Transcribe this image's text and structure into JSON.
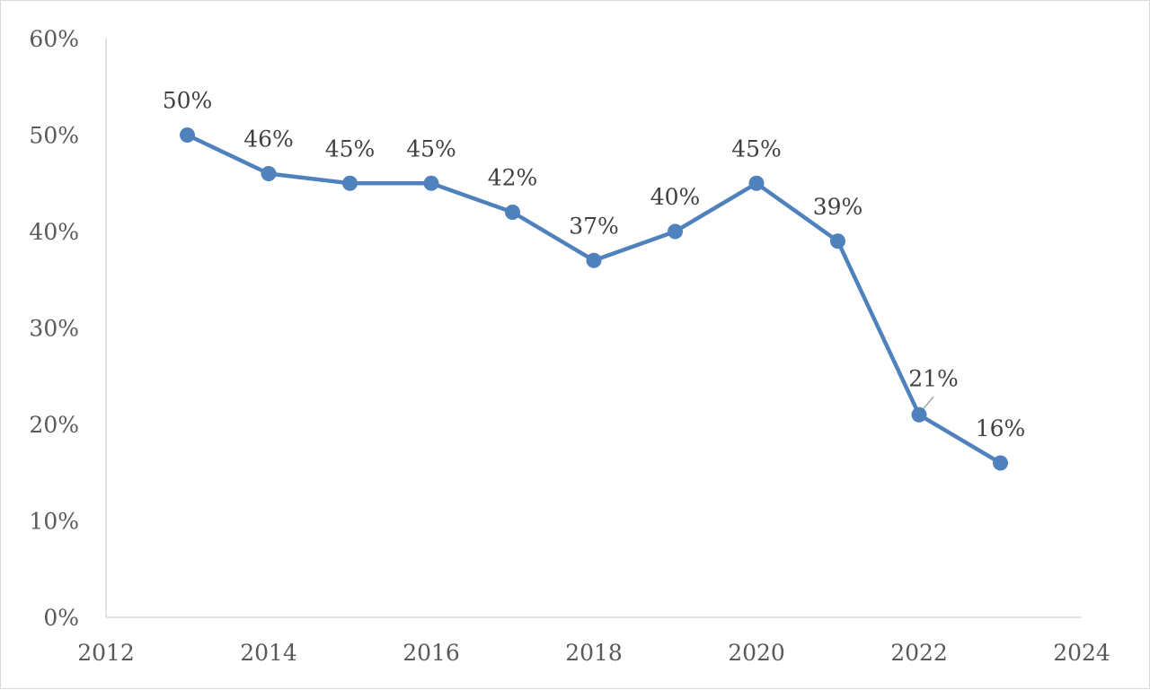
{
  "chart_data": {
    "type": "scatter",
    "title": "",
    "xlabel": "",
    "ylabel": "",
    "x": [
      2013,
      2014,
      2015,
      2016,
      2017,
      2018,
      2019,
      2020,
      2021,
      2022,
      2023
    ],
    "values": [
      50,
      46,
      45,
      45,
      42,
      37,
      40,
      45,
      39,
      21,
      16
    ],
    "data_labels": [
      "50%",
      "46%",
      "45%",
      "45%",
      "42%",
      "37%",
      "40%",
      "45%",
      "39%",
      "21%",
      "16%"
    ],
    "xlim": [
      2012,
      2024
    ],
    "ylim": [
      0,
      60
    ],
    "x_ticks": [
      2012,
      2014,
      2016,
      2018,
      2020,
      2022,
      2024
    ],
    "x_tick_labels": [
      "2012",
      "2014",
      "2016",
      "2018",
      "2020",
      "2022",
      "2024"
    ],
    "y_ticks": [
      0,
      10,
      20,
      30,
      40,
      50,
      60
    ],
    "y_tick_labels": [
      "0%",
      "10%",
      "20%",
      "30%",
      "40%",
      "50%",
      "60%"
    ],
    "series_name": "",
    "line_color": "#4f81bd",
    "grid": false,
    "lines_connect_points": true
  }
}
